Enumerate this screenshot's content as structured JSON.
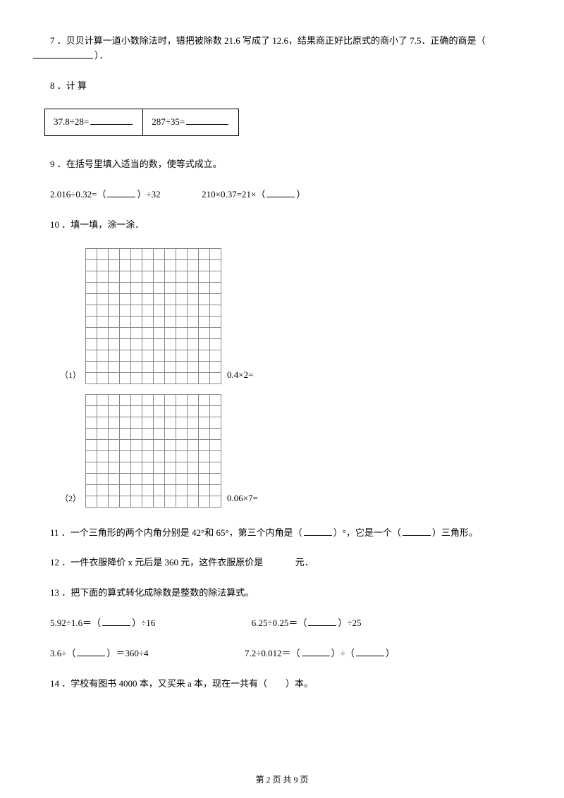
{
  "q7": {
    "num": "7",
    "text_before": "．贝贝计算一道小数除法时，错把被除数 21.6 写成了 12.6，结果商正好比原式的商小了 7.5．正确的商是（",
    "text_after": "）．"
  },
  "q8": {
    "num": "8",
    "text": "．计 算",
    "cell1_before": "37.8÷28=",
    "cell2_before": "287÷35="
  },
  "q9": {
    "num": "9",
    "text": "．在括号里填入适当的数，使等式成立。",
    "line2_a": "2.016÷0.32=（",
    "line2_b": "）÷32",
    "line2_c": "210×0.37=21×（",
    "line2_d": "）"
  },
  "q10": {
    "num": "10",
    "text": "．填一填，涂一涂．",
    "g1_label": "（1）",
    "g1_after": "0.4×2=",
    "g2_label": "（2）",
    "g2_after": "0.06×7="
  },
  "q11": {
    "num": "11",
    "a": "．一个三角形的两个内角分别是 42°和 65°，第三个内角是（",
    "b": "）°，它是一个（",
    "c": "）三角形。"
  },
  "q12": {
    "num": "12",
    "a": "．一件衣服降价 x 元后是 360 元，这件衣服原价是",
    "b": "元．"
  },
  "q13": {
    "num": "13",
    "text": "．把下面的算式转化成除数是整数的除法算式。",
    "r1a_pre": "5.92÷1.6＝（",
    "r1a_post": "）÷16",
    "r1b_pre": "6.25÷0.25＝（",
    "r1b_post": "）÷25",
    "r2a_pre": "3.6÷（",
    "r2a_post": "）＝360÷4",
    "r2b_pre": "7.2÷0.012＝（",
    "r2b_mid": "）÷（",
    "r2b_post": "）"
  },
  "q14": {
    "num": "14",
    "a": "．学校有图书 4000 本，又买来 a 本，现在一共有（　　）本。"
  },
  "footer": "第 2 页 共 9 页"
}
